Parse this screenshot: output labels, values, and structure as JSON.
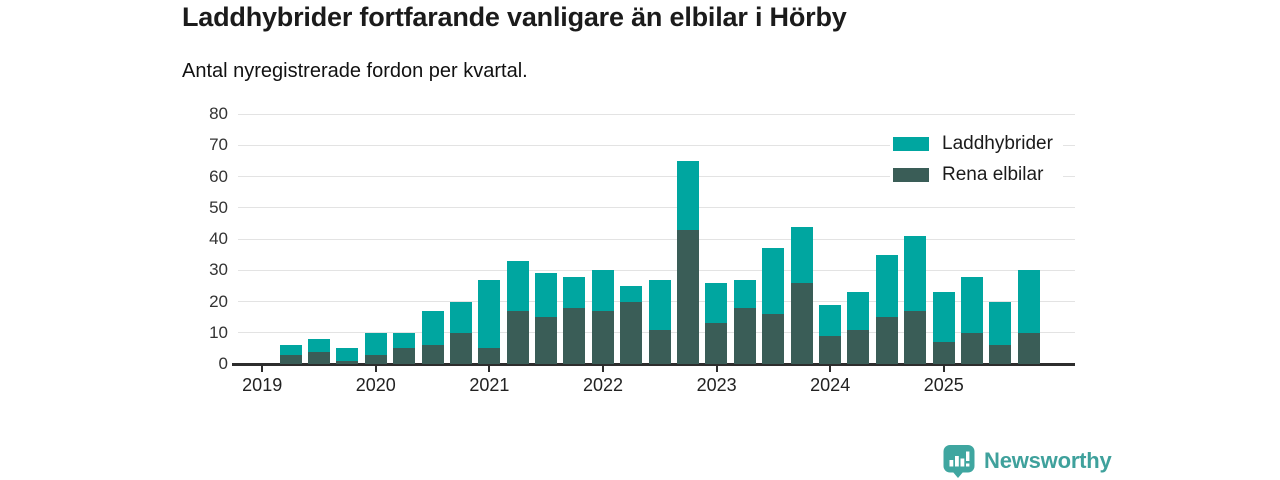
{
  "title": "Laddhybrider fortfarande vanligare än elbilar i Hörby",
  "subtitle": "Antal nyregistrerade fordon per kvartal.",
  "branding": {
    "logo_text": "Newsworthy",
    "logo_icon": "newsworthy-bubble-barchart-icon"
  },
  "colors": {
    "laddhybrider": "#00a6a0",
    "rena_elbilar": "#3a5d57",
    "grid": "#e3e3e3",
    "axis": "#2d2d2d",
    "brand": "#3fa19c",
    "text": "#1b1b1b"
  },
  "chart_data": {
    "type": "bar",
    "stacked": true,
    "title": "Laddhybrider fortfarande vanligare än elbilar i Hörby",
    "subtitle": "Antal nyregistrerade fordon per kvartal.",
    "grid": true,
    "legend_position": "top-right",
    "ylim": [
      0,
      80
    ],
    "y_ticks": [
      0,
      10,
      20,
      30,
      40,
      50,
      60,
      70,
      80
    ],
    "x_tick_labels": [
      "2019",
      "2020",
      "2021",
      "2022",
      "2023",
      "2024",
      "2025"
    ],
    "categories": [
      "2019 Q1",
      "2019 Q2",
      "2019 Q3",
      "2019 Q4",
      "2020 Q1",
      "2020 Q2",
      "2020 Q3",
      "2020 Q4",
      "2021 Q1",
      "2021 Q2",
      "2021 Q3",
      "2021 Q4",
      "2022 Q1",
      "2022 Q2",
      "2022 Q3",
      "2022 Q4",
      "2023 Q1",
      "2023 Q2",
      "2023 Q3",
      "2023 Q4",
      "2024 Q1",
      "2024 Q2",
      "2024 Q3",
      "2024 Q4",
      "2025 Q1",
      "2025 Q2",
      "2025 Q3",
      "2025 Q4"
    ],
    "series": [
      {
        "name": "Rena elbilar",
        "color": "#3a5d57",
        "values": [
          0,
          3,
          4,
          1,
          3,
          5,
          6,
          10,
          5,
          17,
          15,
          18,
          17,
          20,
          11,
          43,
          13,
          18,
          16,
          26,
          9,
          11,
          15,
          17,
          7,
          10,
          6,
          10
        ]
      },
      {
        "name": "Laddhybrider",
        "color": "#00a6a0",
        "values": [
          0,
          3,
          4,
          4,
          7,
          5,
          11,
          10,
          22,
          16,
          14,
          10,
          13,
          5,
          16,
          22,
          13,
          9,
          21,
          18,
          10,
          12,
          20,
          24,
          16,
          18,
          14,
          20
        ]
      }
    ],
    "totals": [
      0,
      6,
      8,
      5,
      10,
      10,
      17,
      20,
      27,
      33,
      29,
      28,
      30,
      25,
      27,
      65,
      26,
      27,
      37,
      44,
      19,
      23,
      35,
      41,
      23,
      28,
      20,
      30
    ],
    "legend": [
      {
        "label": "Laddhybrider",
        "color": "#00a6a0"
      },
      {
        "label": "Rena elbilar",
        "color": "#3a5d57"
      }
    ]
  }
}
